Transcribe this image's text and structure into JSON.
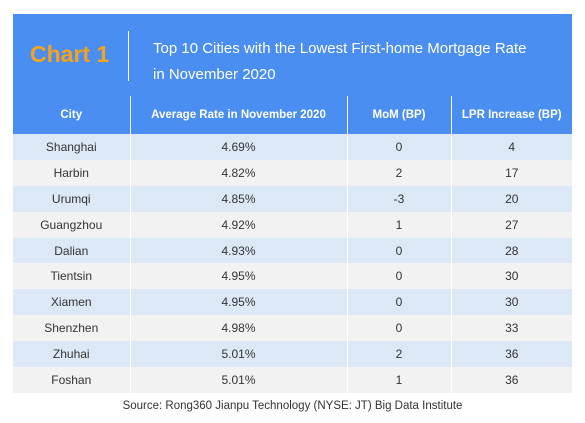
{
  "header": {
    "badge": "Chart 1",
    "title_line1": "Top 10 Cities with the Lowest First-home Mortgage Rate",
    "title_line2": "in November 2020"
  },
  "chart_data": {
    "type": "table",
    "columns": [
      "City",
      "Average Rate in November 2020",
      "MoM (BP)",
      "LPR Increase (BP)"
    ],
    "rows": [
      [
        "Shanghai",
        "4.69%",
        "0",
        "4"
      ],
      [
        "Harbin",
        "4.82%",
        "2",
        "17"
      ],
      [
        "Urumqi",
        "4.85%",
        "-3",
        "20"
      ],
      [
        "Guangzhou",
        "4.92%",
        "1",
        "27"
      ],
      [
        "Dalian",
        "4.93%",
        "0",
        "28"
      ],
      [
        "Tientsin",
        "4.95%",
        "0",
        "30"
      ],
      [
        "Xiamen",
        "4.95%",
        "0",
        "30"
      ],
      [
        "Shenzhen",
        "4.98%",
        "0",
        "33"
      ],
      [
        "Zhuhai",
        "5.01%",
        "2",
        "36"
      ],
      [
        "Foshan",
        "5.01%",
        "1",
        "36"
      ]
    ]
  },
  "source": "Source: Rong360 Jianpu Technology (NYSE: JT) Big Data Institute",
  "colors": {
    "header_bg": "#4a8ef2",
    "badge": "#f7a21b",
    "row_odd": "#dde8f6",
    "row_even": "#f2f2f2"
  }
}
